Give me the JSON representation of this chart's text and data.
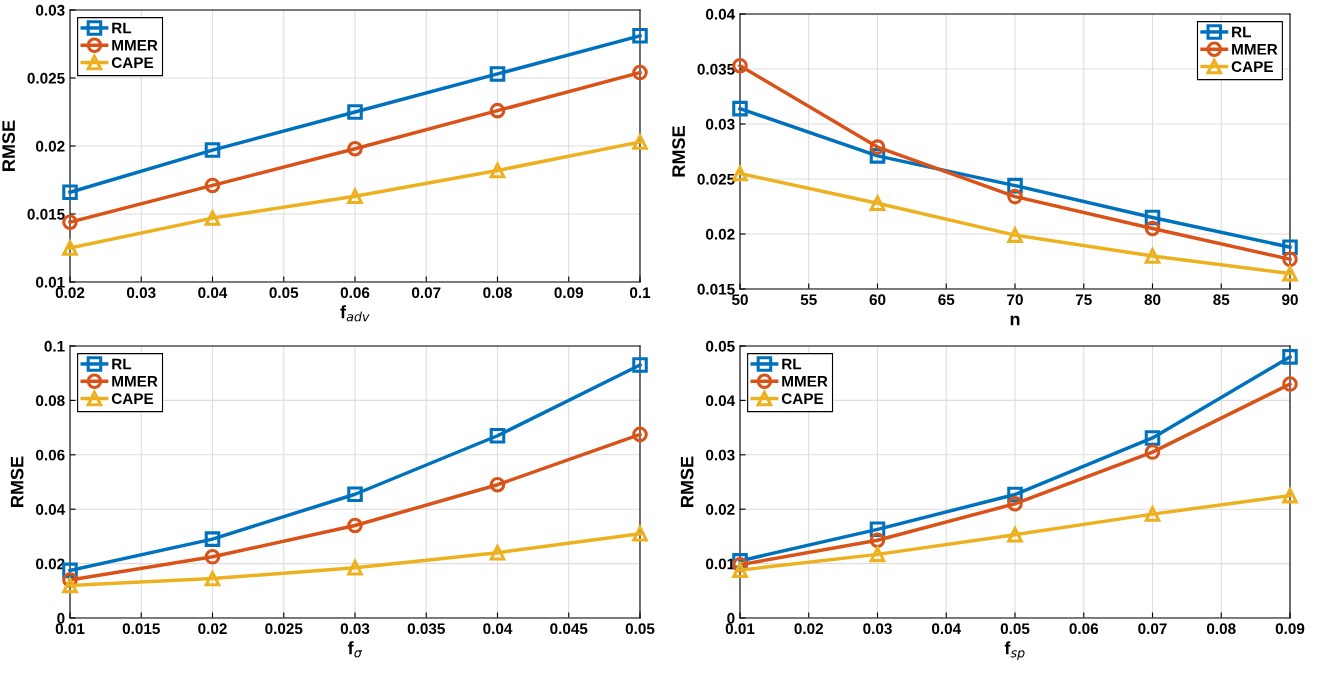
{
  "chart_data": [
    {
      "type": "line",
      "xlabel": "f$_{adv}$",
      "ylabel": "RMSE",
      "x": [
        0.02,
        0.04,
        0.06,
        0.08,
        0.1
      ],
      "xlim": [
        0.02,
        0.1
      ],
      "xticks": [
        0.02,
        0.03,
        0.04,
        0.05,
        0.06,
        0.07,
        0.08,
        0.09,
        0.1
      ],
      "ylim": [
        0.01,
        0.03
      ],
      "yticks": [
        0.01,
        0.015,
        0.02,
        0.025,
        0.03
      ],
      "grid": true,
      "legend": "top left",
      "line_style": "solid",
      "series": [
        {
          "name": "RL",
          "color": "#0072bd",
          "marker": "square",
          "values": [
            0.0166,
            0.0197,
            0.0225,
            0.0253,
            0.0281
          ]
        },
        {
          "name": "MMER",
          "color": "#d95319",
          "marker": "circle",
          "values": [
            0.0144,
            0.0171,
            0.0198,
            0.0226,
            0.0254
          ]
        },
        {
          "name": "CAPE",
          "color": "#edb120",
          "marker": "triangle",
          "values": [
            0.0125,
            0.0147,
            0.0163,
            0.0182,
            0.0203
          ]
        }
      ]
    },
    {
      "type": "line",
      "xlabel": "n",
      "ylabel": "RMSE",
      "x": [
        50,
        60,
        70,
        80,
        90
      ],
      "xlim": [
        50,
        90
      ],
      "xticks": [
        50,
        55,
        60,
        65,
        70,
        75,
        80,
        85,
        90
      ],
      "ylim": [
        0.015,
        0.04
      ],
      "yticks": [
        0.015,
        0.02,
        0.025,
        0.03,
        0.035,
        0.04
      ],
      "grid": true,
      "legend": "top right",
      "line_style": "solid",
      "series": [
        {
          "name": "RL",
          "color": "#0072bd",
          "marker": "square",
          "values": [
            0.0314,
            0.0271,
            0.0244,
            0.0215,
            0.0188
          ]
        },
        {
          "name": "MMER",
          "color": "#d95319",
          "marker": "circle",
          "values": [
            0.0353,
            0.0279,
            0.0234,
            0.0205,
            0.0177
          ]
        },
        {
          "name": "CAPE",
          "color": "#edb120",
          "marker": "triangle",
          "values": [
            0.0255,
            0.0228,
            0.0199,
            0.018,
            0.0164
          ]
        }
      ]
    },
    {
      "type": "line",
      "xlabel": "f$_{σ}$",
      "ylabel": "RMSE",
      "x": [
        0.01,
        0.02,
        0.03,
        0.04,
        0.05
      ],
      "xlim": [
        0.01,
        0.05
      ],
      "xticks": [
        0.01,
        0.015,
        0.02,
        0.025,
        0.03,
        0.035,
        0.04,
        0.045,
        0.05
      ],
      "ylim": [
        0,
        0.1
      ],
      "yticks": [
        0,
        0.02,
        0.04,
        0.06,
        0.08,
        0.1
      ],
      "grid": true,
      "legend": "top left",
      "line_style": "solid",
      "series": [
        {
          "name": "RL",
          "color": "#0072bd",
          "marker": "square",
          "values": [
            0.0175,
            0.029,
            0.0455,
            0.067,
            0.093
          ]
        },
        {
          "name": "MMER",
          "color": "#d95319",
          "marker": "circle",
          "values": [
            0.014,
            0.0225,
            0.034,
            0.049,
            0.0675
          ]
        },
        {
          "name": "CAPE",
          "color": "#edb120",
          "marker": "triangle",
          "values": [
            0.012,
            0.0145,
            0.0185,
            0.024,
            0.031
          ]
        }
      ]
    },
    {
      "type": "line",
      "xlabel": "f$_{sp}$",
      "ylabel": "RMSE",
      "x": [
        0.01,
        0.03,
        0.05,
        0.07,
        0.09
      ],
      "xlim": [
        0.01,
        0.09
      ],
      "xticks": [
        0.01,
        0.02,
        0.03,
        0.04,
        0.05,
        0.06,
        0.07,
        0.08,
        0.09
      ],
      "ylim": [
        0,
        0.05
      ],
      "yticks": [
        0,
        0.01,
        0.02,
        0.03,
        0.04,
        0.05
      ],
      "grid": true,
      "legend": "top left",
      "line_style": "solid",
      "series": [
        {
          "name": "RL",
          "color": "#0072bd",
          "marker": "square",
          "values": [
            0.0105,
            0.0163,
            0.0227,
            0.0331,
            0.048
          ]
        },
        {
          "name": "MMER",
          "color": "#d95319",
          "marker": "circle",
          "values": [
            0.0098,
            0.0143,
            0.021,
            0.0305,
            0.043
          ]
        },
        {
          "name": "CAPE",
          "color": "#edb120",
          "marker": "triangle",
          "values": [
            0.0088,
            0.0117,
            0.0153,
            0.0191,
            0.0225
          ]
        }
      ]
    }
  ]
}
